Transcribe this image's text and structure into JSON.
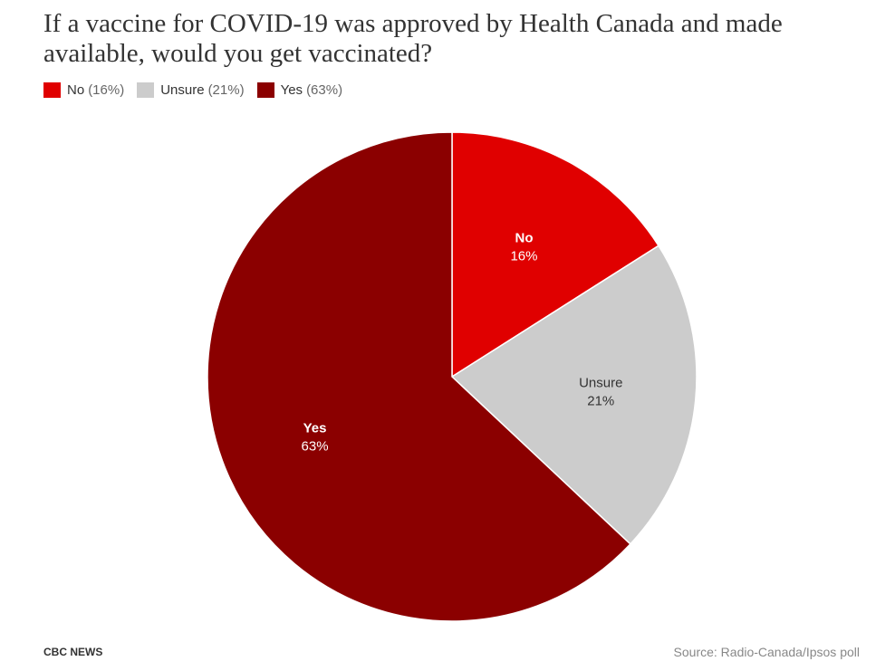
{
  "chart_data": {
    "type": "pie",
    "title": "If a vaccine for COVID-19 was approved by Health Canada and made available, would you get vaccinated?",
    "categories": [
      "No",
      "Unsure",
      "Yes"
    ],
    "values": [
      16,
      21,
      63
    ],
    "unit": "%",
    "colors": [
      "#e00000",
      "#cccccc",
      "#8b0000"
    ],
    "label_colors": [
      "#ffffff",
      "#333333",
      "#ffffff"
    ],
    "legend": [
      {
        "name": "No",
        "pct": "(16%)",
        "color": "#e00000"
      },
      {
        "name": "Unsure",
        "pct": "(21%)",
        "color": "#cccccc"
      },
      {
        "name": "Yes",
        "pct": "(63%)",
        "color": "#8b0000"
      }
    ],
    "legend_position": "top-left",
    "slice_labels": [
      {
        "name": "No",
        "value": "16%"
      },
      {
        "name": "Unsure",
        "value": "21%"
      },
      {
        "name": "Yes",
        "value": "63%"
      }
    ]
  },
  "footer": {
    "brand": "CBC NEWS",
    "source": "Source: Radio-Canada/Ipsos poll"
  }
}
